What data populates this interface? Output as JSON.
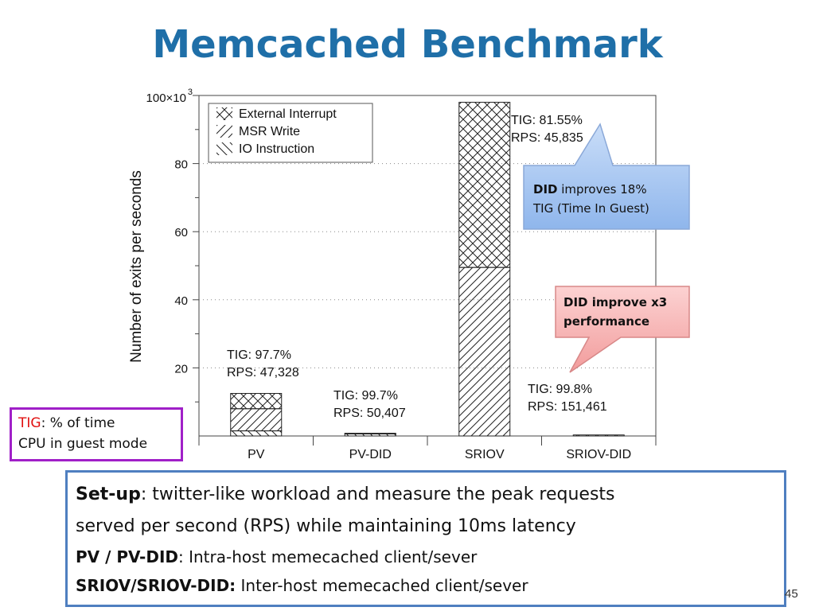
{
  "slide": {
    "title": "Memcached Benchmark",
    "page_number": "45"
  },
  "chart_data": {
    "type": "bar",
    "stacked": true,
    "ylabel": "Number of exits per seconds",
    "y_top_tick_label": "100×10",
    "y_top_tick_exp": "3",
    "ylim": [
      0,
      100
    ],
    "yticks": [
      20,
      40,
      60,
      80
    ],
    "grid": "horizontal dotted",
    "categories": [
      "PV",
      "PV-DID",
      "SRIOV",
      "SRIOV-DID"
    ],
    "series": [
      {
        "name": "IO Instruction",
        "pattern": "backslash-hatch",
        "values": [
          1.5,
          0.6,
          0,
          0
        ]
      },
      {
        "name": "MSR Write",
        "pattern": "slash-hatch",
        "values": [
          6.5,
          0,
          49.5,
          0
        ]
      },
      {
        "name": "External Interrupt",
        "pattern": "cross-hatch",
        "values": [
          4.5,
          0.2,
          48.5,
          0.3
        ]
      }
    ],
    "legend_position": "top-left",
    "annotations": [
      {
        "category": "PV",
        "line1": "TIG: 97.7%",
        "line2": "RPS: 47,328"
      },
      {
        "category": "PV-DID",
        "line1": "TIG: 99.7%",
        "line2": "RPS: 50,407"
      },
      {
        "category": "SRIOV",
        "line1": "TIG: 81.55%",
        "line2": "RPS: 45,835"
      },
      {
        "category": "SRIOV-DID",
        "line1": "TIG: 99.8%",
        "line2": "RPS: 151,461"
      }
    ]
  },
  "callouts": {
    "blue": {
      "bold": "DID",
      "rest": " improves 18%",
      "line2": "TIG (Time In Guest)",
      "color": "#a9c8f2"
    },
    "red": {
      "line1": "DID improve x3",
      "line2": "performance",
      "color": "#f7b6b6"
    }
  },
  "tig_note": {
    "term": "TIG",
    "rest": ": % of time",
    "line2": "CPU in guest mode"
  },
  "setup": {
    "l1_bold": "Set-up",
    "l1_rest": ": twitter-like workload and measure the peak requests",
    "l2": "served per second (RPS) while maintaining 10ms latency",
    "l3_bold": "PV / PV-DID",
    "l3_rest": ": Intra-host memecached client/sever",
    "l4_bold": "SRIOV/SRIOV-DID:",
    "l4_rest": " Inter-host memecached client/sever"
  }
}
